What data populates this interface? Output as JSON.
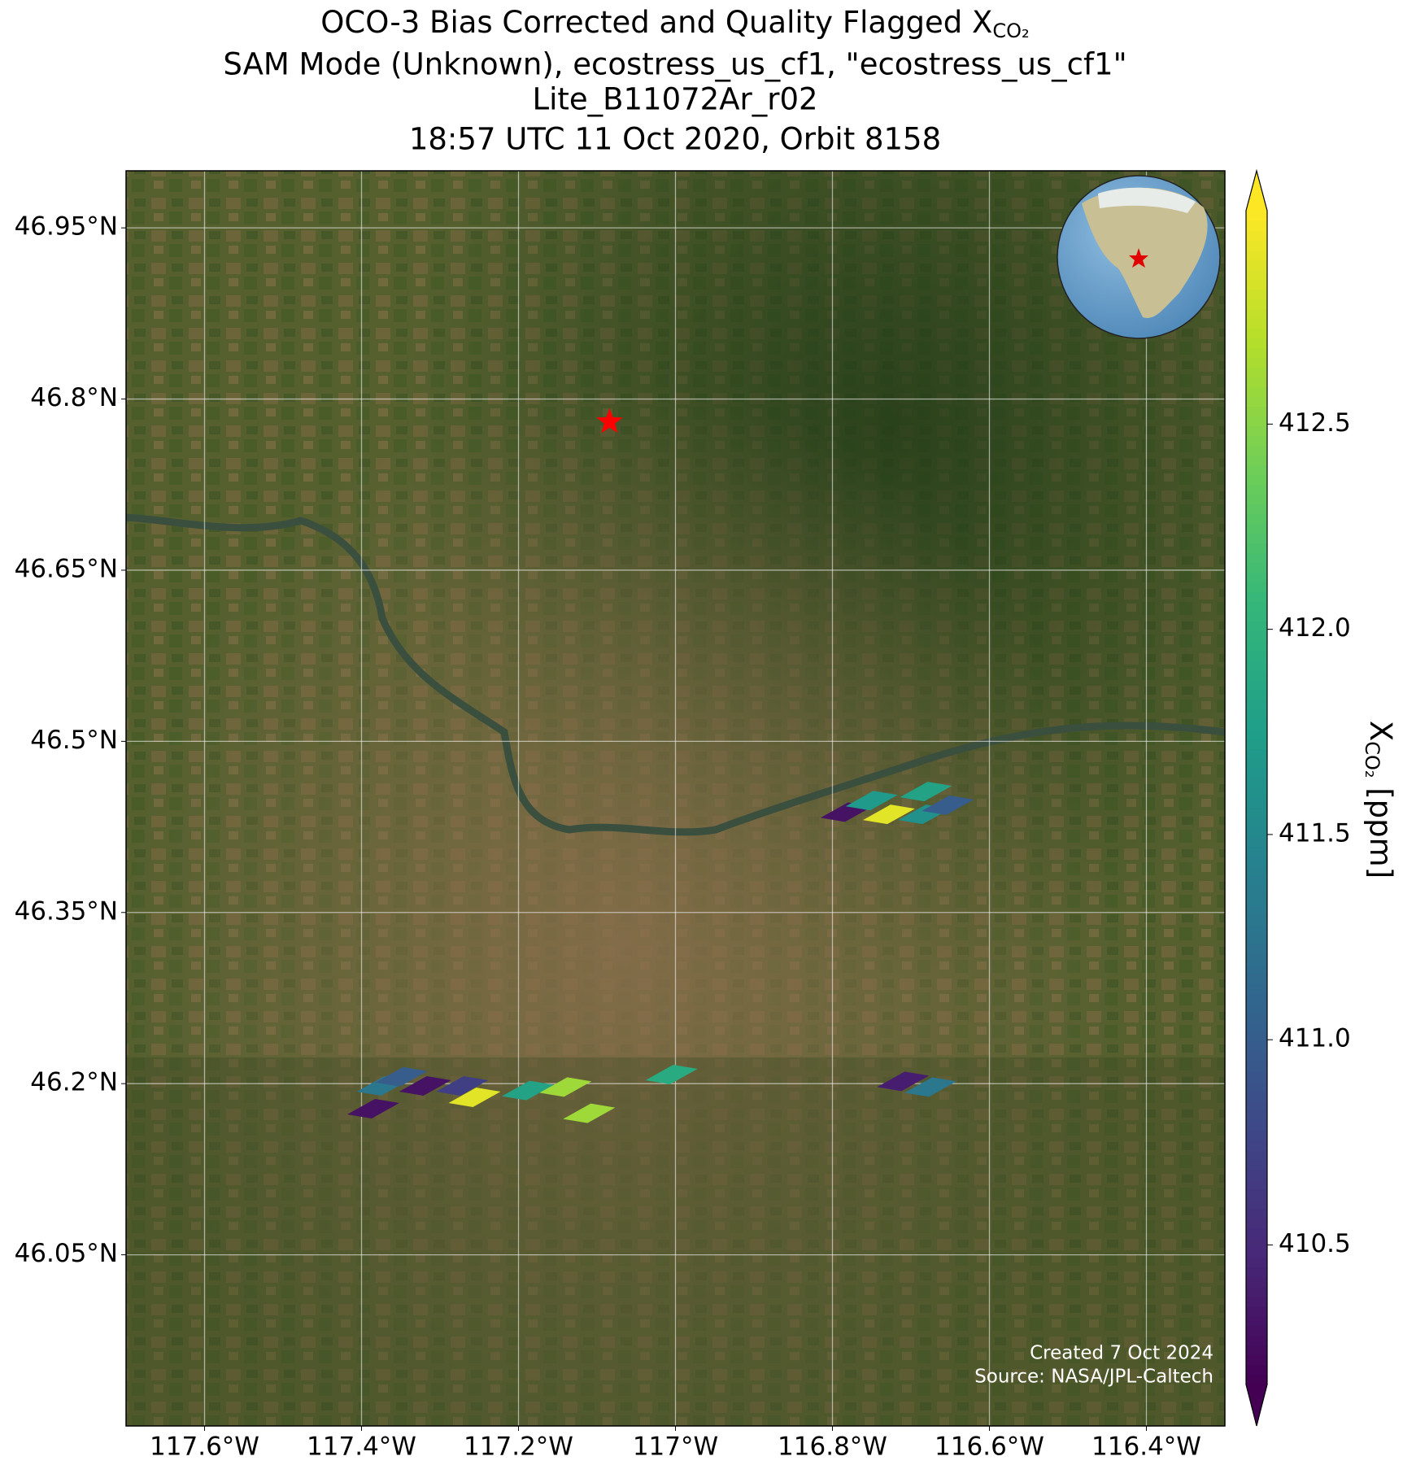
{
  "chart_data": {
    "type": "map",
    "title": {
      "text": "OCO-3 Bias Corrected and Quality Flagged X",
      "subscript": "CO₂"
    },
    "subtitle": [
      "SAM Mode (Unknown), ecostress_us_cf1, \"ecostress_us_cf1\"",
      "Lite_B11072Ar_r02",
      "18:57 UTC 11 Oct 2020, Orbit 8158"
    ],
    "x": [
      -116.782,
      -116.75,
      -116.728,
      -116.681,
      -116.683,
      -116.653,
      -117.373,
      -117.349,
      -117.319,
      -117.385,
      -117.272,
      -117.256,
      -117.188,
      -117.14,
      -117.11,
      -117.005,
      -116.71,
      -116.675
    ],
    "y": [
      46.438,
      46.448,
      46.436,
      46.456,
      46.436,
      46.444,
      46.198,
      46.206,
      46.198,
      46.178,
      46.198,
      46.188,
      46.194,
      46.197,
      46.174,
      46.208,
      46.202,
      46.197
    ],
    "values": [
      410.3,
      411.7,
      412.9,
      411.8,
      411.6,
      411.0,
      411.3,
      411.0,
      410.3,
      410.3,
      410.7,
      412.9,
      411.8,
      412.6,
      412.6,
      411.9,
      410.4,
      411.3
    ],
    "target": {
      "x": -117.084,
      "y": 46.78
    },
    "xlim": [
      -117.7,
      -116.3
    ],
    "ylim": [
      45.9,
      47.0
    ],
    "xticks": [
      {
        "value": -117.6,
        "label": "117.6°W"
      },
      {
        "value": -117.4,
        "label": "117.4°W"
      },
      {
        "value": -117.2,
        "label": "117.2°W"
      },
      {
        "value": -117.0,
        "label": "117°W"
      },
      {
        "value": -116.8,
        "label": "116.8°W"
      },
      {
        "value": -116.6,
        "label": "116.6°W"
      },
      {
        "value": -116.4,
        "label": "116.4°W"
      }
    ],
    "yticks": [
      {
        "value": 46.95,
        "label": "46.95°N"
      },
      {
        "value": 46.8,
        "label": "46.8°N"
      },
      {
        "value": 46.65,
        "label": "46.65°N"
      },
      {
        "value": 46.5,
        "label": "46.5°N"
      },
      {
        "value": 46.35,
        "label": "46.35°N"
      },
      {
        "value": 46.2,
        "label": "46.2°N"
      },
      {
        "value": 46.05,
        "label": "46.05°N"
      }
    ],
    "grid": true,
    "colormap": "viridis",
    "clim": [
      410.16,
      413.02
    ],
    "cticks": [
      410.5,
      {
        "value": 411.0,
        "label": "411.0"
      },
      411.5,
      {
        "value": 412.0,
        "label": "412.0"
      },
      412.5
    ],
    "colorbar_label": {
      "text": "X",
      "subscript": "CO₂",
      "suffix": " [ppm]"
    },
    "credits": [
      "Created 7 Oct 2024",
      "Source: NASA/JPL-Caltech"
    ]
  }
}
